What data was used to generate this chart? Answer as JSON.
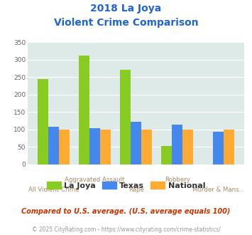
{
  "title_line1": "2018 La Joya",
  "title_line2": "Violent Crime Comparison",
  "categories": [
    "All Violent Crime",
    "Aggravated Assault",
    "Rape",
    "Robbery",
    "Murder & Mans..."
  ],
  "la_joya": [
    245,
    312,
    272,
    54,
    0
  ],
  "texas": [
    108,
    105,
    122,
    115,
    93
  ],
  "national": [
    100,
    100,
    100,
    100,
    100
  ],
  "colors": {
    "la_joya": "#88cc22",
    "texas": "#4488ee",
    "national": "#ffaa33"
  },
  "ylim": [
    0,
    350
  ],
  "yticks": [
    0,
    50,
    100,
    150,
    200,
    250,
    300,
    350
  ],
  "background_color": "#ddeae8",
  "title_color": "#2266cc",
  "xlabel_color": "#aa8866",
  "xlabel_color2": "#aa8866",
  "legend_label_color": "#333333",
  "legend_labels": [
    "La Joya",
    "Texas",
    "National"
  ],
  "footnote1": "Compared to U.S. average. (U.S. average equals 100)",
  "footnote2": "© 2025 CityRating.com - https://www.cityrating.com/crime-statistics/",
  "footnote1_color": "#cc3300",
  "footnote2_color": "#999999",
  "grid_color": "#ffffff"
}
